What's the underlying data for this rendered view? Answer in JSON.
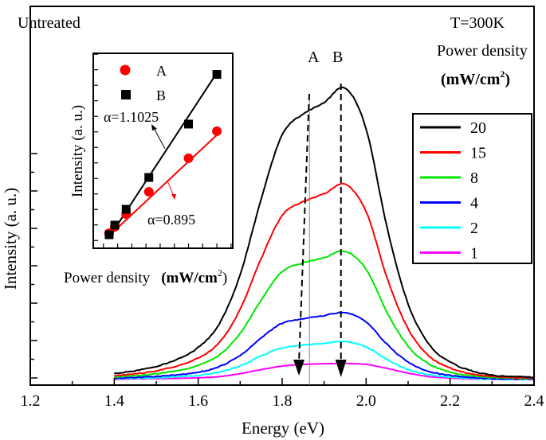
{
  "chart_data": [
    {
      "type": "line",
      "xlabel": "Energy (eV)",
      "ylabel": "Intensity (a. u.)",
      "xlim": [
        1.2,
        2.4
      ],
      "ylim": [
        0,
        128
      ],
      "xticks": [
        "1.2",
        "1.4",
        "1.6",
        "1.8",
        "2.0",
        "2.2",
        "2.4"
      ],
      "grid": false,
      "legend_placement": "right",
      "annotations": {
        "sample": "Untreated",
        "temperature": "T=300K",
        "legend_title": "Power density",
        "legend_unit": {
          "pre": "(mW/cm",
          "sup": "2",
          "post": ")"
        },
        "peak_a": {
          "label": "A",
          "energy": 1.84
        },
        "peak_b": {
          "label": "B",
          "energy": 1.94
        }
      },
      "x": [
        1.4,
        1.45,
        1.5,
        1.55,
        1.6,
        1.65,
        1.7,
        1.75,
        1.8,
        1.85,
        1.9,
        1.95,
        2.0,
        2.05,
        2.1,
        2.15,
        2.2,
        2.25,
        2.3,
        2.35,
        2.4
      ],
      "series": [
        {
          "name": "20",
          "color": "#000000",
          "values": [
            2,
            3,
            4.5,
            7,
            11,
            19,
            36,
            62,
            84,
            91,
            95,
            100,
            86,
            52,
            26,
            12,
            6,
            3,
            1.5,
            1,
            0.8
          ]
        },
        {
          "name": "15",
          "color": "#ff0000",
          "values": [
            1.3,
            2,
            3,
            4.7,
            7.4,
            12.7,
            24.1,
            41.5,
            56.3,
            61,
            63.7,
            67,
            57.6,
            34.8,
            17.4,
            8,
            4,
            2,
            1,
            0.7,
            0.5
          ]
        },
        {
          "name": "8",
          "color": "#00e600",
          "values": [
            0.9,
            1.3,
            2,
            3.1,
            4.8,
            8.4,
            15.8,
            27.3,
            37,
            40,
            41.8,
            44,
            37.8,
            22.9,
            11.4,
            5.3,
            2.6,
            1.3,
            0.7,
            0.4,
            0.4
          ]
        },
        {
          "name": "4",
          "color": "#0000ff",
          "values": [
            0.5,
            0.7,
            1,
            1.6,
            2.5,
            4.4,
            8.3,
            14.3,
            19.3,
            20.9,
            21.9,
            23,
            19.8,
            12,
            6,
            2.8,
            1.4,
            0.7,
            0.3,
            0.2,
            0.2
          ]
        },
        {
          "name": "2",
          "color": "#00ffff",
          "values": [
            0.3,
            0.4,
            0.6,
            0.9,
            1.4,
            2.5,
            4.7,
            8.1,
            10.9,
            11.8,
            12.4,
            13,
            11.2,
            6.8,
            3.4,
            1.6,
            0.8,
            0.4,
            0.2,
            0.1,
            0.1
          ]
        },
        {
          "name": "1",
          "color": "#ff00ff",
          "values": [
            0.1,
            0.2,
            0.3,
            0.4,
            0.6,
            1,
            2,
            3.4,
            4.6,
            5.2,
            5.4,
            5.5,
            5.2,
            3.8,
            2.2,
            1,
            0.5,
            0.2,
            0.1,
            0.1,
            0
          ]
        }
      ]
    },
    {
      "type": "scatter",
      "xlabel": "Power density",
      "xlabel_unit": {
        "pre": "(mW/cm",
        "sup": "2",
        "post": ")"
      },
      "ylabel": "Intensity (a. u.)",
      "xlim": [
        -1.8,
        22.8
      ],
      "ylim": [
        0,
        12.56
      ],
      "legend_placement": "top-left",
      "x": [
        1,
        2,
        4,
        8,
        15,
        20
      ],
      "series": [
        {
          "name": "A",
          "color": "#ff0000",
          "marker": "circle",
          "values": [
            0.97,
            1.38,
            2.2,
            3.64,
            5.8,
            7.54
          ],
          "fit": [
            0.8,
            7.3
          ],
          "fit_label": "α=0.895"
        },
        {
          "name": "B",
          "color": "#000000",
          "marker": "square",
          "values": [
            0.87,
            1.49,
            2.51,
            4.56,
            8.0,
            11.2
          ],
          "fit": [
            0.7,
            11.3
          ],
          "fit_label": "α=1.1025"
        }
      ]
    }
  ]
}
